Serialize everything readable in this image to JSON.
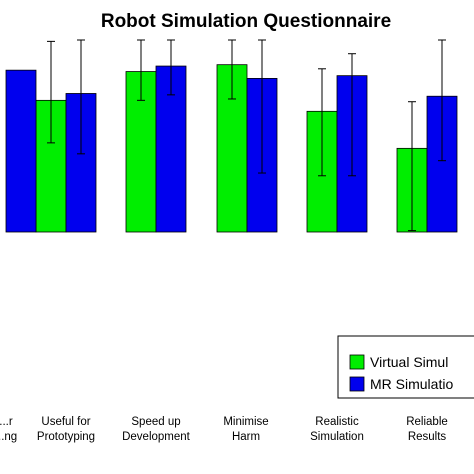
{
  "chart_data": {
    "type": "bar",
    "title": "Robot Simulation Questionnaire",
    "xlabel": "",
    "ylabel": "",
    "categories": [
      [
        "...r",
        "...ng"
      ],
      [
        "Useful for",
        "Prototyping"
      ],
      [
        "Speed up",
        "Development"
      ],
      [
        "Minimise",
        "Harm"
      ],
      [
        "Realistic",
        "Simulation"
      ],
      [
        "Reliable",
        "Results"
      ]
    ],
    "ylim": [
      0,
      7
    ],
    "series": [
      {
        "name": "Virtual Simul...",
        "color": "#00ee00",
        "values": [
          null,
          4.8,
          5.85,
          6.1,
          4.4,
          3.05
        ],
        "err_low": [
          null,
          3.25,
          4.8,
          4.85,
          2.05,
          0.05
        ],
        "err_high": [
          null,
          6.95,
          7.0,
          7.0,
          5.95,
          4.75
        ]
      },
      {
        "name": "MR Simulatio...",
        "color": "#0000ee",
        "values": [
          5.9,
          5.05,
          6.05,
          5.6,
          5.7,
          4.95
        ],
        "err_low": [
          null,
          2.85,
          5.0,
          2.15,
          2.05,
          2.6
        ],
        "err_high": [
          null,
          7.0,
          7.0,
          7.0,
          6.5,
          7.0
        ]
      }
    ],
    "grid": false,
    "legend": "bottom-right"
  }
}
